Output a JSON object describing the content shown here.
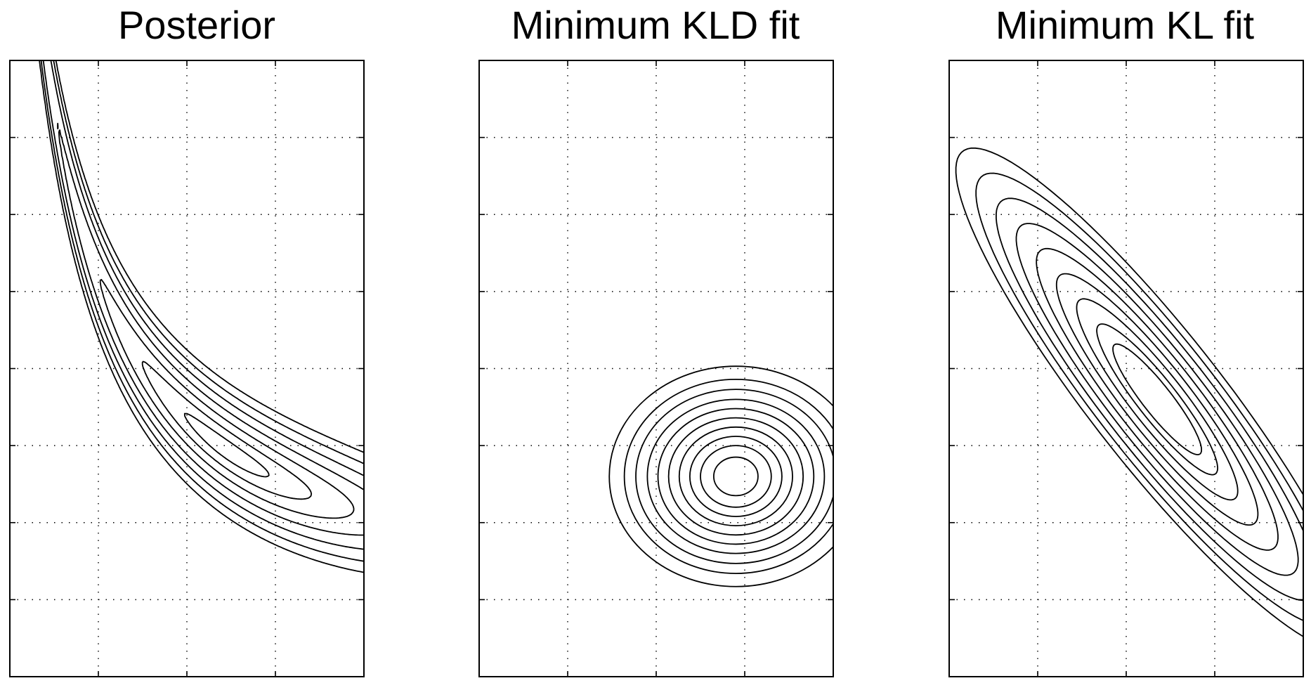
{
  "chart_data": [
    {
      "type": "contour",
      "title": "Posterior",
      "xlabel": "",
      "ylabel": "",
      "xlim": [
        0,
        4
      ],
      "ylim": [
        0,
        8
      ],
      "grid": true,
      "xticks": [
        1,
        2,
        3
      ],
      "yticks": [
        1,
        2,
        3,
        4,
        5,
        6,
        7
      ],
      "tick_labels_shown": false,
      "distribution": "curved banana-shaped density",
      "ridge_curve": "y = 0.55 + 7.2 / (x + 0.55)",
      "mode": [
        2.45,
        2.4
      ],
      "contour_levels": 7,
      "line_color": "#000000"
    },
    {
      "type": "contour",
      "title": "Minimum KLD fit",
      "xlabel": "",
      "ylabel": "",
      "xlim": [
        0,
        4
      ],
      "ylim": [
        0,
        8
      ],
      "grid": true,
      "xticks": [
        1,
        2,
        3
      ],
      "yticks": [
        1,
        2,
        3,
        4,
        5,
        6,
        7
      ],
      "tick_labels_shown": false,
      "distribution": "isotropic Gaussian",
      "mean": [
        2.9,
        2.6
      ],
      "contour_radii": [
        0.25,
        0.4,
        0.52,
        0.64,
        0.76,
        0.88,
        1.0,
        1.13,
        1.26,
        1.43
      ],
      "line_color": "#000000"
    },
    {
      "type": "contour",
      "title": "Minimum KL fit",
      "xlabel": "",
      "ylabel": "",
      "xlim": [
        0,
        4
      ],
      "ylim": [
        0,
        8
      ],
      "grid": true,
      "xticks": [
        1,
        2,
        3
      ],
      "yticks": [
        1,
        2,
        3,
        4,
        5,
        6,
        7
      ],
      "tick_labels_shown": false,
      "distribution": "correlated Gaussian",
      "mean": [
        2.35,
        3.6
      ],
      "major_axis_angle_deg": -56,
      "scales": [
        0.22,
        0.3,
        0.4,
        0.5,
        0.6,
        0.7,
        0.8,
        0.9,
        1.0
      ],
      "outer_semi_axes": [
        3.9,
        0.78
      ],
      "line_color": "#000000"
    }
  ]
}
